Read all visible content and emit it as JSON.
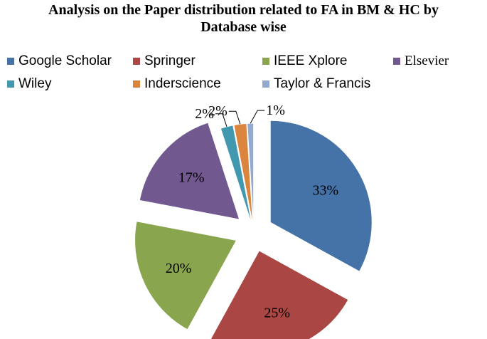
{
  "chart_data": {
    "type": "pie",
    "title": "Analysis on the Paper distribution related to FA in BM & HC by Database wise",
    "categories": [
      "Google Scholar",
      "Springer",
      "IEEE Xplore",
      "Elsevier",
      "Wiley",
      "Inderscience",
      "Taylor & Francis"
    ],
    "values": [
      33,
      25,
      20,
      17,
      2,
      2,
      1
    ],
    "labels": [
      "33%",
      "25%",
      "20%",
      "17%",
      "2%",
      "2%",
      "1%"
    ],
    "colors": [
      "#4572A7",
      "#AA4643",
      "#89A54E",
      "#71588F",
      "#4198AF",
      "#DB843D",
      "#93A9CF"
    ],
    "legend_position": "top",
    "exploded": true
  }
}
